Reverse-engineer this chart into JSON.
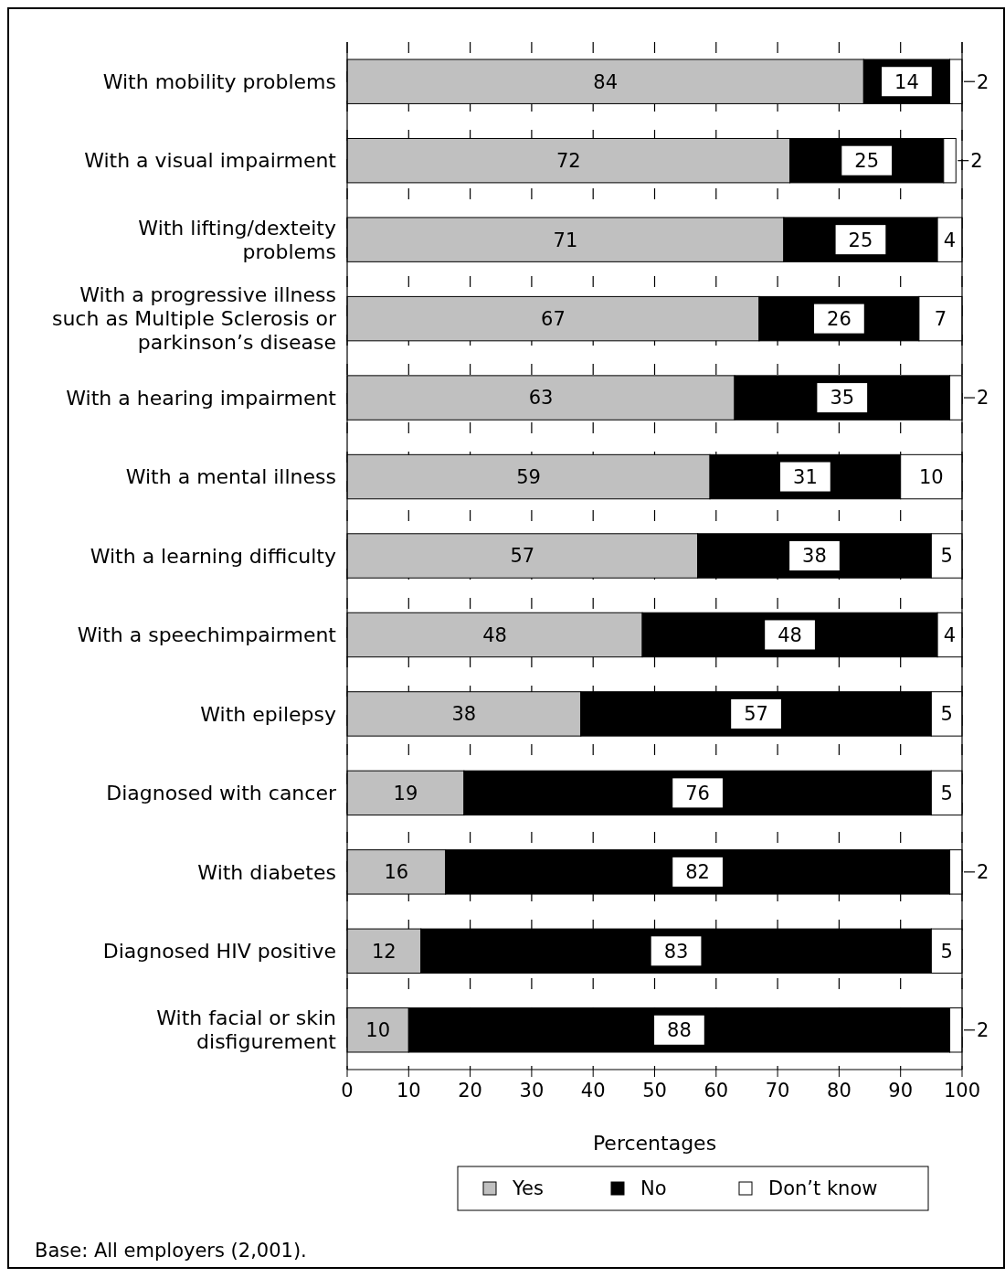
{
  "chart_data": {
    "type": "bar",
    "orientation": "horizontal",
    "stacked": true,
    "categories": [
      "With mobility problems",
      "With a visual impairment",
      "With lifting/dexteity problems",
      "With a progressive illness such as Multiple Sclerosis or parkinson’s disease",
      "With a hearing impairment",
      "With a mental illness",
      "With a learning difficulty",
      "With a speechimpairment",
      "With epilepsy",
      "Diagnosed with cancer",
      "With diabetes",
      "Diagnosed HIV positive",
      "With facial or skin disfigurement"
    ],
    "series": [
      {
        "name": "Yes",
        "color": "#c0c0c0",
        "values": [
          84,
          72,
          71,
          67,
          63,
          59,
          57,
          48,
          38,
          19,
          16,
          12,
          10
        ]
      },
      {
        "name": "No",
        "color": "#000000",
        "values": [
          14,
          25,
          25,
          26,
          35,
          31,
          38,
          48,
          57,
          76,
          82,
          83,
          88
        ]
      },
      {
        "name": "Don’t know",
        "color": "#ffffff",
        "values": [
          2,
          2,
          4,
          7,
          2,
          10,
          5,
          4,
          5,
          5,
          2,
          5,
          2
        ]
      }
    ],
    "xlim": [
      0,
      100
    ],
    "xticks": [
      0,
      10,
      20,
      30,
      40,
      50,
      60,
      70,
      80,
      90,
      100
    ],
    "xlabel": "Percentages",
    "grid": "x",
    "legend": "bottom",
    "data_labels": true,
    "annotations": [
      "Base: All employers (2,001)."
    ]
  }
}
